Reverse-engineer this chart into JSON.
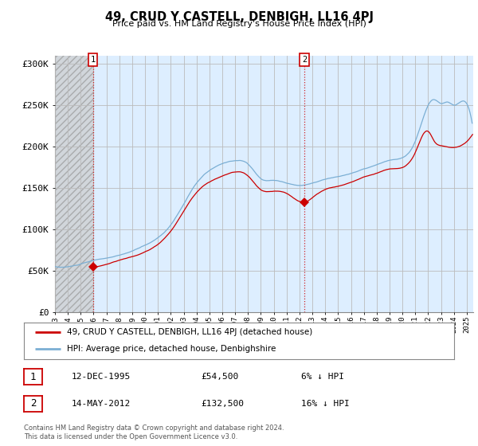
{
  "title": "49, CRUD Y CASTELL, DENBIGH, LL16 4PJ",
  "subtitle": "Price paid vs. HM Land Registry's House Price Index (HPI)",
  "legend_line1": "49, CRUD Y CASTELL, DENBIGH, LL16 4PJ (detached house)",
  "legend_line2": "HPI: Average price, detached house, Denbighshire",
  "annotation1_date": "12-DEC-1995",
  "annotation1_price": "£54,500",
  "annotation1_hpi": "6% ↓ HPI",
  "annotation2_date": "14-MAY-2012",
  "annotation2_price": "£132,500",
  "annotation2_hpi": "16% ↓ HPI",
  "footer": "Contains HM Land Registry data © Crown copyright and database right 2024.\nThis data is licensed under the Open Government Licence v3.0.",
  "ylim": [
    0,
    310000
  ],
  "yticks": [
    0,
    50000,
    100000,
    150000,
    200000,
    250000,
    300000
  ],
  "ytick_labels": [
    "£0",
    "£50K",
    "£100K",
    "£150K",
    "£200K",
    "£250K",
    "£300K"
  ],
  "hpi_color": "#7bafd4",
  "price_color": "#cc0000",
  "bg_main_color": "#ddeeff",
  "bg_hatch_color": "#d8d8d8",
  "grid_color": "#bbbbbb",
  "vline_color": "#cc0000",
  "marker1_x": 1995.95,
  "marker1_y": 54500,
  "marker2_x": 2012.38,
  "marker2_y": 132500,
  "vline1_x": 1995.95,
  "vline2_x": 2012.38,
  "hatch_end_x": 1995.95,
  "xlim_left": 1993.0,
  "xlim_right": 2025.5
}
